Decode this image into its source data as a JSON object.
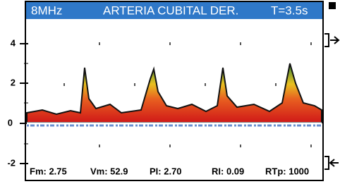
{
  "header": {
    "frequency": "8MHz",
    "title": "ARTERIA CUBITAL DER.",
    "time": "T=3.5s"
  },
  "axis": {
    "labels": [
      "4",
      "2",
      "0",
      "-2"
    ]
  },
  "measurements": [
    "Fm: 2.75",
    "Vm: 52.9",
    "PI: 2.70",
    "RI: 0.09",
    "RTp: 1000"
  ]
}
